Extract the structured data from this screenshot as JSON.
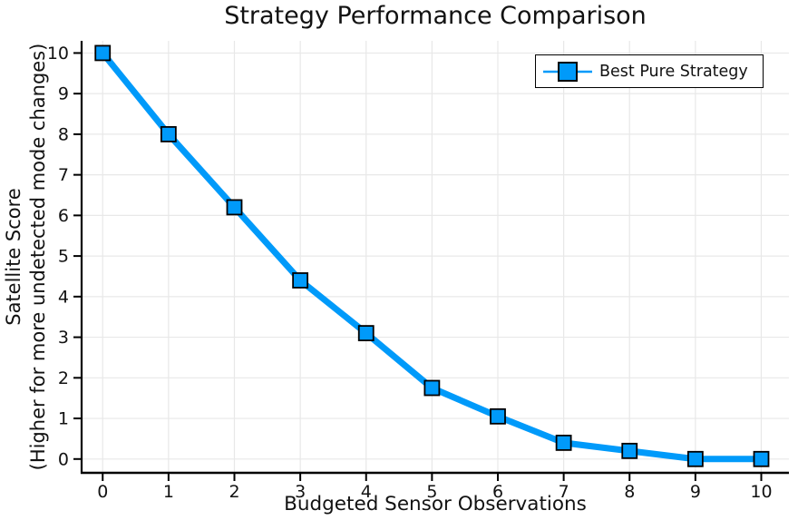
{
  "chart_data": {
    "type": "line",
    "title": "Strategy Performance Comparison",
    "xlabel": "Budgeted Sensor Observations",
    "ylabel": "Satellite Score (Higher for more undetected mode changes)",
    "ylabel_lines": [
      "Satellite Score",
      "(Higher for more undetected mode changes)"
    ],
    "series": [
      {
        "name": "Best Pure Strategy",
        "x": [
          0,
          1,
          2,
          3,
          4,
          5,
          6,
          7,
          8,
          9,
          10
        ],
        "y": [
          10.0,
          8.0,
          6.2,
          4.4,
          3.1,
          1.75,
          1.05,
          0.4,
          0.2,
          0.0,
          0.0
        ],
        "marker": "square",
        "line_width": 7,
        "marker_size": 16
      }
    ],
    "xticks": [
      0,
      1,
      2,
      3,
      4,
      5,
      6,
      7,
      8,
      9,
      10
    ],
    "yticks": [
      0,
      1,
      2,
      3,
      4,
      5,
      6,
      7,
      8,
      9,
      10
    ],
    "xlim": [
      -0.32,
      10.42
    ],
    "ylim": [
      -0.34,
      10.3
    ],
    "grid": true,
    "legend_position": "top-right"
  },
  "colors": {
    "series": "#009AFA",
    "marker_fill": "#009AFA",
    "marker_stroke": "#000000",
    "grid": "#e8e8e8",
    "axis": "#000000",
    "tick_label": "#121212",
    "background": "#ffffff"
  }
}
